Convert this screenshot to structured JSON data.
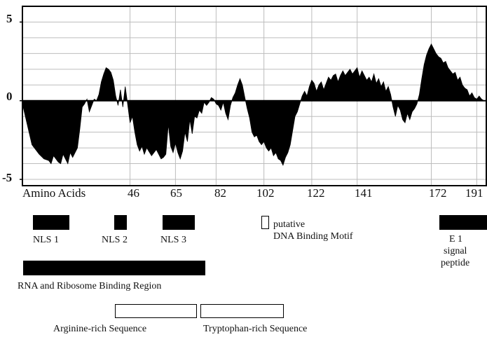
{
  "chart_data": {
    "type": "area",
    "title": "",
    "xlabel": "Amino Acids",
    "ylabel": "",
    "xlim": [
      1,
      195
    ],
    "ylim": [
      -5.4,
      6
    ],
    "y_ticks": [
      "5",
      "0",
      "-5"
    ],
    "x_ticks": [
      "46",
      "65",
      "82",
      "102",
      "122",
      "141",
      "172",
      "191"
    ],
    "grid": true,
    "colors": {
      "fill": "#000000",
      "grid": "#bdbdbd",
      "frame": "#000000"
    },
    "series": [
      {
        "points": [
          [
            1,
            -0.2
          ],
          [
            3,
            -1.5
          ],
          [
            5,
            -2.8
          ],
          [
            8,
            -3.4
          ],
          [
            10,
            -3.7
          ],
          [
            12,
            -3.8
          ],
          [
            13,
            -4.0
          ],
          [
            14,
            -3.5
          ],
          [
            16,
            -3.9
          ],
          [
            17,
            -4.0
          ],
          [
            18,
            -3.4
          ],
          [
            20,
            -4.0
          ],
          [
            21,
            -3.3
          ],
          [
            22,
            -3.6
          ],
          [
            24,
            -3.0
          ],
          [
            25,
            -1.8
          ],
          [
            26,
            -0.4
          ],
          [
            27,
            -0.2
          ],
          [
            28,
            0.1
          ],
          [
            29,
            -0.7
          ],
          [
            30,
            -0.3
          ],
          [
            31,
            0.1
          ],
          [
            32,
            0.0
          ],
          [
            33,
            0.4
          ],
          [
            34,
            1.2
          ],
          [
            35,
            1.7
          ],
          [
            36,
            2.1
          ],
          [
            37,
            2.0
          ],
          [
            38,
            1.8
          ],
          [
            39,
            1.3
          ],
          [
            40,
            0.3
          ],
          [
            41,
            -0.3
          ],
          [
            42,
            0.7
          ],
          [
            43,
            -0.4
          ],
          [
            44,
            0.9
          ],
          [
            45,
            -0.2
          ],
          [
            46,
            -1.4
          ],
          [
            47,
            -1.0
          ],
          [
            48,
            -2.0
          ],
          [
            49,
            -2.8
          ],
          [
            50,
            -3.2
          ],
          [
            51,
            -2.9
          ],
          [
            52,
            -3.4
          ],
          [
            53,
            -3.0
          ],
          [
            55,
            -3.5
          ],
          [
            57,
            -3.1
          ],
          [
            59,
            -3.7
          ],
          [
            60,
            -3.6
          ],
          [
            61,
            -3.4
          ],
          [
            62,
            -1.5
          ],
          [
            63,
            -2.9
          ],
          [
            64,
            -3.3
          ],
          [
            65,
            -2.7
          ],
          [
            66,
            -3.3
          ],
          [
            67,
            -3.7
          ],
          [
            68,
            -3.2
          ],
          [
            69,
            -2.0
          ],
          [
            70,
            -2.6
          ],
          [
            71,
            -1.2
          ],
          [
            72,
            -2.1
          ],
          [
            73,
            -1.0
          ],
          [
            74,
            -1.1
          ],
          [
            75,
            -0.6
          ],
          [
            76,
            -0.8
          ],
          [
            77,
            -0.1
          ],
          [
            78,
            -0.3
          ],
          [
            79,
            -0.1
          ],
          [
            80,
            0.2
          ],
          [
            81,
            0.1
          ],
          [
            82,
            -0.2
          ],
          [
            83,
            -0.3
          ],
          [
            84,
            -0.6
          ],
          [
            85,
            -0.1
          ],
          [
            86,
            -0.8
          ],
          [
            87,
            -1.2
          ],
          [
            88,
            -0.3
          ],
          [
            89,
            0.2
          ],
          [
            90,
            0.5
          ],
          [
            91,
            1.0
          ],
          [
            92,
            1.4
          ],
          [
            93,
            1.0
          ],
          [
            94,
            0.2
          ],
          [
            95,
            -0.5
          ],
          [
            96,
            -1.1
          ],
          [
            97,
            -2.0
          ],
          [
            98,
            -2.3
          ],
          [
            99,
            -2.2
          ],
          [
            100,
            -2.6
          ],
          [
            101,
            -2.8
          ],
          [
            102,
            -2.6
          ],
          [
            103,
            -3.0
          ],
          [
            104,
            -3.2
          ],
          [
            105,
            -3.0
          ],
          [
            106,
            -3.5
          ],
          [
            107,
            -3.3
          ],
          [
            108,
            -3.7
          ],
          [
            109,
            -3.8
          ],
          [
            110,
            -4.1
          ],
          [
            111,
            -3.6
          ],
          [
            112,
            -3.3
          ],
          [
            113,
            -2.8
          ],
          [
            114,
            -1.9
          ],
          [
            115,
            -1.0
          ],
          [
            116,
            -0.7
          ],
          [
            117,
            -0.2
          ],
          [
            118,
            0.3
          ],
          [
            119,
            0.6
          ],
          [
            120,
            0.3
          ],
          [
            121,
            0.9
          ],
          [
            122,
            1.3
          ],
          [
            123,
            1.1
          ],
          [
            124,
            0.6
          ],
          [
            125,
            1.0
          ],
          [
            126,
            1.2
          ],
          [
            127,
            0.7
          ],
          [
            128,
            1.1
          ],
          [
            129,
            1.5
          ],
          [
            130,
            1.3
          ],
          [
            131,
            1.6
          ],
          [
            132,
            1.7
          ],
          [
            133,
            1.2
          ],
          [
            134,
            1.6
          ],
          [
            135,
            1.9
          ],
          [
            136,
            1.6
          ],
          [
            137,
            1.8
          ],
          [
            138,
            2.0
          ],
          [
            139,
            1.7
          ],
          [
            140,
            1.9
          ],
          [
            141,
            2.1
          ],
          [
            142,
            1.5
          ],
          [
            143,
            1.9
          ],
          [
            144,
            1.6
          ],
          [
            145,
            1.3
          ],
          [
            146,
            1.5
          ],
          [
            147,
            1.2
          ],
          [
            148,
            1.7
          ],
          [
            149,
            1.1
          ],
          [
            150,
            1.4
          ],
          [
            151,
            0.9
          ],
          [
            152,
            1.2
          ],
          [
            153,
            0.6
          ],
          [
            154,
            0.9
          ],
          [
            155,
            0.4
          ],
          [
            156,
            -0.4
          ],
          [
            157,
            -1.0
          ],
          [
            158,
            -0.3
          ],
          [
            159,
            -0.6
          ],
          [
            160,
            -1.2
          ],
          [
            161,
            -1.4
          ],
          [
            162,
            -0.8
          ],
          [
            163,
            -1.2
          ],
          [
            164,
            -0.7
          ],
          [
            165,
            -0.5
          ],
          [
            166,
            -0.2
          ],
          [
            167,
            0.4
          ],
          [
            168,
            1.4
          ],
          [
            169,
            2.3
          ],
          [
            170,
            2.9
          ],
          [
            171,
            3.3
          ],
          [
            172,
            3.6
          ],
          [
            173,
            3.3
          ],
          [
            174,
            3.0
          ],
          [
            175,
            2.8
          ],
          [
            176,
            2.7
          ],
          [
            177,
            2.4
          ],
          [
            178,
            2.5
          ],
          [
            179,
            2.1
          ],
          [
            180,
            1.9
          ],
          [
            181,
            1.7
          ],
          [
            182,
            1.8
          ],
          [
            183,
            1.3
          ],
          [
            184,
            1.5
          ],
          [
            185,
            1.0
          ],
          [
            186,
            0.8
          ],
          [
            187,
            0.7
          ],
          [
            188,
            0.3
          ],
          [
            189,
            0.5
          ],
          [
            190,
            0.2
          ],
          [
            191,
            0.1
          ],
          [
            192,
            0.3
          ],
          [
            193,
            0.1
          ],
          [
            194,
            0.0
          ]
        ]
      }
    ]
  },
  "legend": {
    "nls1": "NLS 1",
    "nls2": "NLS 2",
    "nls3": "NLS 3",
    "putative_line1": "putative",
    "putative_line2": "DNA Binding Motif",
    "e1_line1": "E 1",
    "e1_line2": "signal",
    "e1_line3": "peptide",
    "rna_region": "RNA and Ribosome Binding Region",
    "arginine": "Arginine-rich Sequence",
    "tryptophan": "Tryptophan-rich Sequence"
  }
}
